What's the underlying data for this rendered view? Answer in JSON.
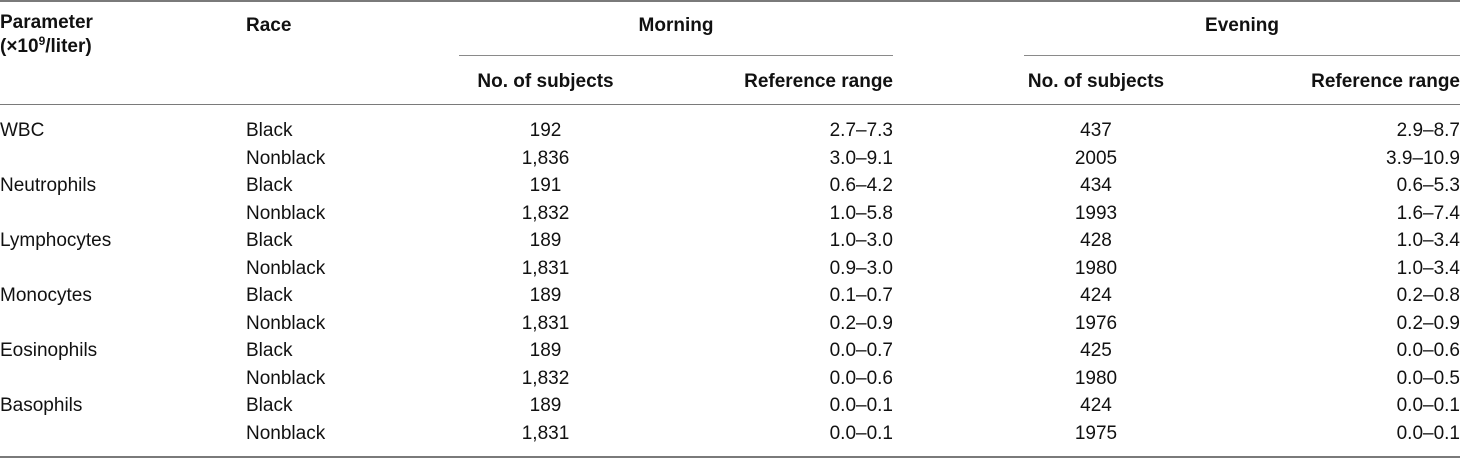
{
  "header": {
    "parameter_line1": "Parameter",
    "parameter_line2_prefix": "(×10",
    "parameter_line2_sup": "9",
    "parameter_line2_suffix": "/liter)",
    "race": "Race",
    "morning": "Morning",
    "evening": "Evening",
    "no_of_subjects": "No. of subjects",
    "reference_range": "Reference range"
  },
  "rows": [
    {
      "parameter": "WBC",
      "race": "Black",
      "morning_n": "192",
      "morning_range": "2.7–7.3",
      "evening_n": "437",
      "evening_range": "2.9–8.7"
    },
    {
      "parameter": "",
      "race": "Nonblack",
      "morning_n": "1,836",
      "morning_range": "3.0–9.1",
      "evening_n": "2005",
      "evening_range": "3.9–10.9"
    },
    {
      "parameter": "Neutrophils",
      "race": "Black",
      "morning_n": "191",
      "morning_range": "0.6–4.2",
      "evening_n": "434",
      "evening_range": "0.6–5.3"
    },
    {
      "parameter": "",
      "race": "Nonblack",
      "morning_n": "1,832",
      "morning_range": "1.0–5.8",
      "evening_n": "1993",
      "evening_range": "1.6–7.4"
    },
    {
      "parameter": "Lymphocytes",
      "race": "Black",
      "morning_n": "189",
      "morning_range": "1.0–3.0",
      "evening_n": "428",
      "evening_range": "1.0–3.4"
    },
    {
      "parameter": "",
      "race": "Nonblack",
      "morning_n": "1,831",
      "morning_range": "0.9–3.0",
      "evening_n": "1980",
      "evening_range": "1.0–3.4"
    },
    {
      "parameter": "Monocytes",
      "race": "Black",
      "morning_n": "189",
      "morning_range": "0.1–0.7",
      "evening_n": "424",
      "evening_range": "0.2–0.8"
    },
    {
      "parameter": "",
      "race": "Nonblack",
      "morning_n": "1,831",
      "morning_range": "0.2–0.9",
      "evening_n": "1976",
      "evening_range": "0.2–0.9"
    },
    {
      "parameter": "Eosinophils",
      "race": "Black",
      "morning_n": "189",
      "morning_range": "0.0–0.7",
      "evening_n": "425",
      "evening_range": "0.0–0.6"
    },
    {
      "parameter": "",
      "race": "Nonblack",
      "morning_n": "1,832",
      "morning_range": "0.0–0.6",
      "evening_n": "1980",
      "evening_range": "0.0–0.5"
    },
    {
      "parameter": "Basophils",
      "race": "Black",
      "morning_n": "189",
      "morning_range": "0.0–0.1",
      "evening_n": "424",
      "evening_range": "0.0–0.1"
    },
    {
      "parameter": "",
      "race": "Nonblack",
      "morning_n": "1,831",
      "morning_range": "0.0–0.1",
      "evening_n": "1975",
      "evening_range": "0.0–0.1"
    }
  ]
}
